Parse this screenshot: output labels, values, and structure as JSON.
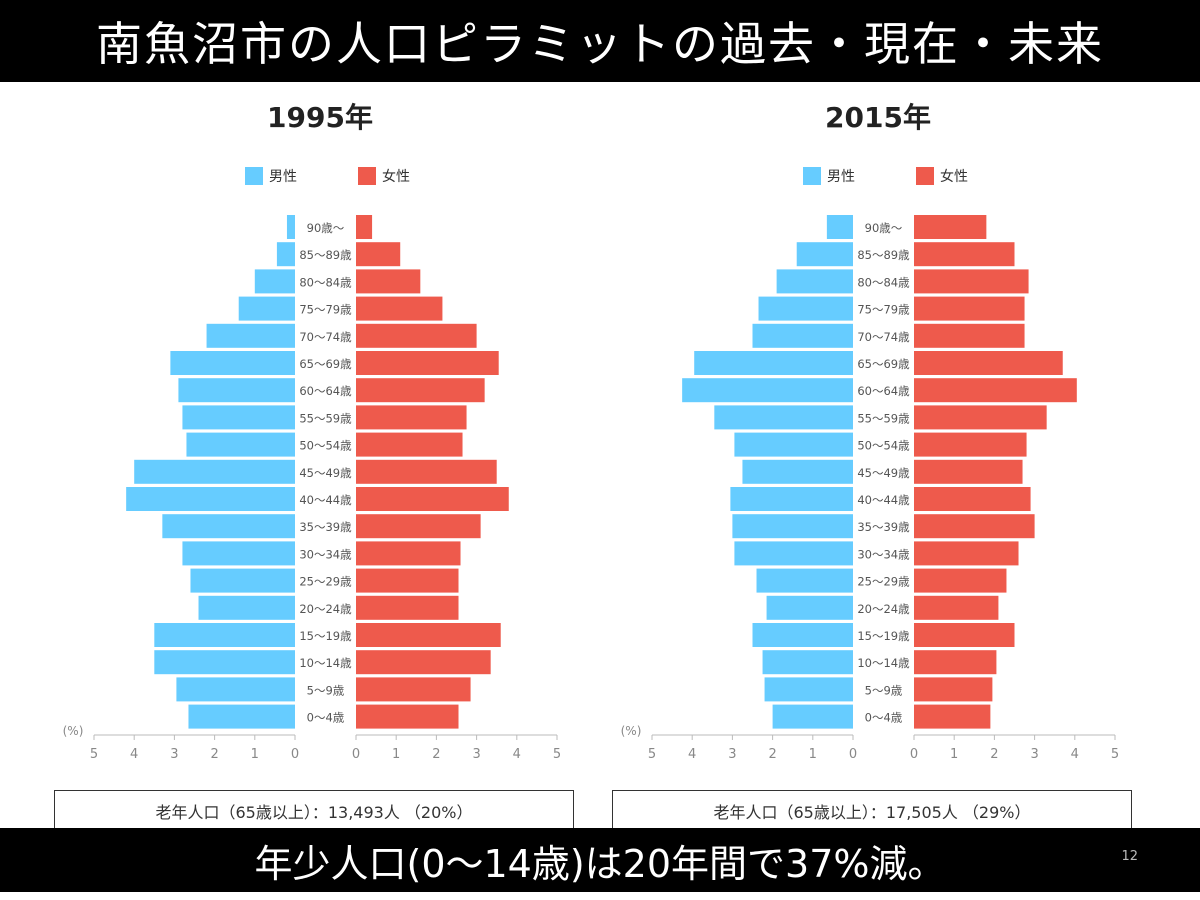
{
  "slide": {
    "title": "南魚沼市の人口ピラミットの過去・現在・未来",
    "footer_text": "年少人口(0〜14歳)は20年間で37%減。",
    "page_number": "12"
  },
  "colors": {
    "male": "#66ccff",
    "female": "#ee5a4c",
    "axis": "#bbbbbb",
    "label": "#555555"
  },
  "chart_data": [
    {
      "type": "bar",
      "orientation": "horizontal-pyramid",
      "title": "1995年",
      "unit_label": "(%)",
      "xlim": [
        0,
        5
      ],
      "ticks": [
        "5",
        "4",
        "3",
        "2",
        "1",
        "0",
        "0",
        "1",
        "2",
        "3",
        "4",
        "5"
      ],
      "legend": [
        "男性",
        "女性"
      ],
      "categories": [
        "90歳〜",
        "85〜89歳",
        "80〜84歳",
        "75〜79歳",
        "70〜74歳",
        "65〜69歳",
        "60〜64歳",
        "55〜59歳",
        "50〜54歳",
        "45〜49歳",
        "40〜44歳",
        "35〜39歳",
        "30〜34歳",
        "25〜29歳",
        "20〜24歳",
        "15〜19歳",
        "10〜14歳",
        "5〜9歳",
        "0〜4歳"
      ],
      "series": [
        {
          "name": "男性",
          "values": [
            0.2,
            0.45,
            1.0,
            1.4,
            2.2,
            3.1,
            2.9,
            2.8,
            2.7,
            4.0,
            4.2,
            3.3,
            2.8,
            2.6,
            2.4,
            3.5,
            3.5,
            2.95,
            2.65
          ]
        },
        {
          "name": "女性",
          "values": [
            0.4,
            1.1,
            1.6,
            2.15,
            3.0,
            3.55,
            3.2,
            2.75,
            2.65,
            3.5,
            3.8,
            3.1,
            2.6,
            2.55,
            2.55,
            3.6,
            3.35,
            2.85,
            2.55
          ]
        }
      ],
      "summary": "老年人口（65歳以上）：13,493人 （20%）"
    },
    {
      "type": "bar",
      "orientation": "horizontal-pyramid",
      "title": "2015年",
      "unit_label": "(%)",
      "xlim": [
        0,
        5
      ],
      "ticks": [
        "5",
        "4",
        "3",
        "2",
        "1",
        "0",
        "0",
        "1",
        "2",
        "3",
        "4",
        "5"
      ],
      "legend": [
        "男性",
        "女性"
      ],
      "categories": [
        "90歳〜",
        "85〜89歳",
        "80〜84歳",
        "75〜79歳",
        "70〜74歳",
        "65〜69歳",
        "60〜64歳",
        "55〜59歳",
        "50〜54歳",
        "45〜49歳",
        "40〜44歳",
        "35〜39歳",
        "30〜34歳",
        "25〜29歳",
        "20〜24歳",
        "15〜19歳",
        "10〜14歳",
        "5〜9歳",
        "0〜4歳"
      ],
      "series": [
        {
          "name": "男性",
          "values": [
            0.65,
            1.4,
            1.9,
            2.35,
            2.5,
            3.95,
            4.25,
            3.45,
            2.95,
            2.75,
            3.05,
            3.0,
            2.95,
            2.4,
            2.15,
            2.5,
            2.25,
            2.2,
            2.0
          ]
        },
        {
          "name": "女性",
          "values": [
            1.8,
            2.5,
            2.85,
            2.75,
            2.75,
            3.7,
            4.05,
            3.3,
            2.8,
            2.7,
            2.9,
            3.0,
            2.6,
            2.3,
            2.1,
            2.5,
            2.05,
            1.95,
            1.9
          ]
        }
      ],
      "summary": "老年人口（65歳以上）：17,505人 （29%）"
    }
  ]
}
